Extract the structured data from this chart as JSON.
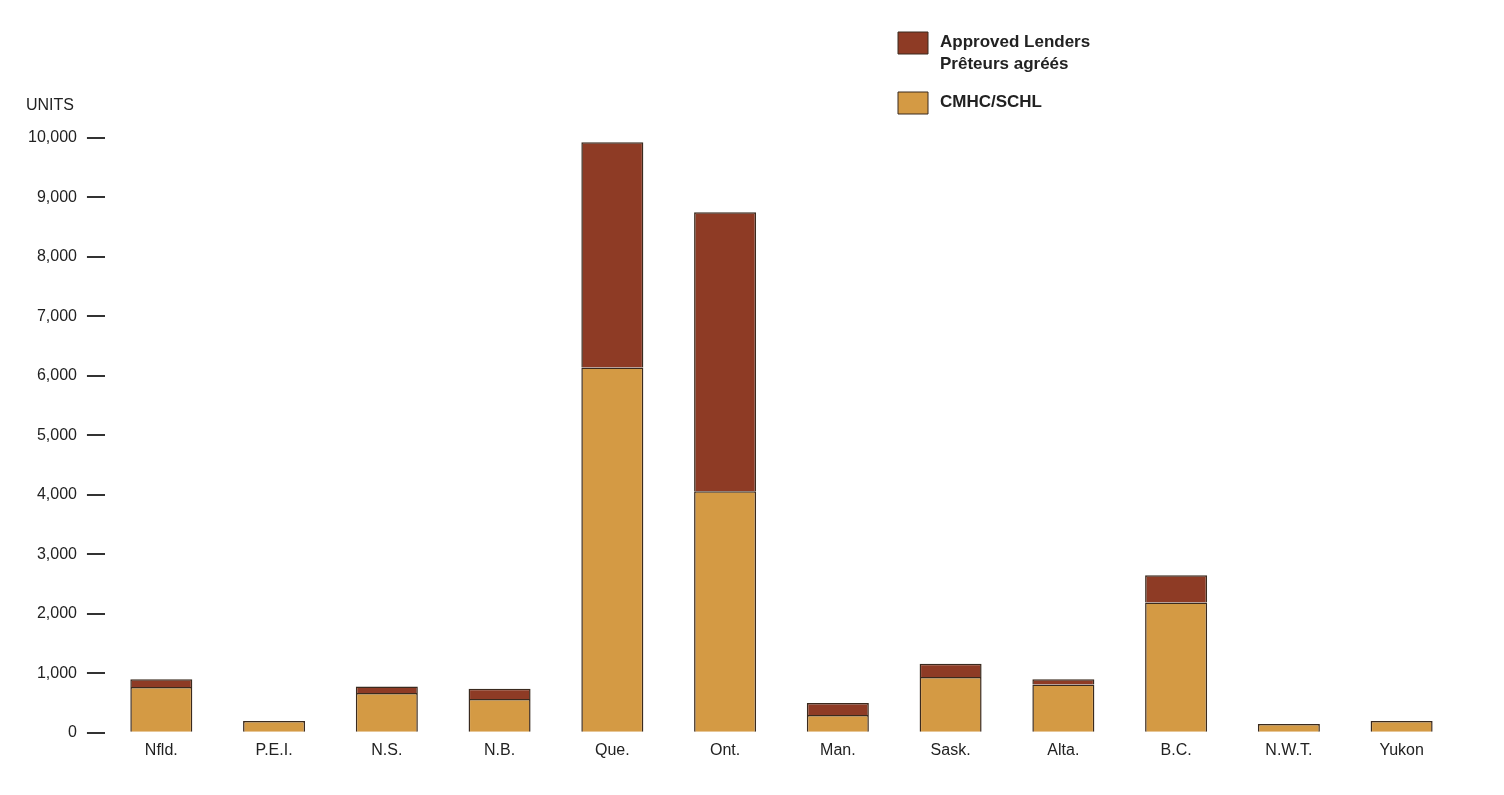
{
  "chart_data": {
    "type": "bar",
    "stacked": true,
    "ylabel": "UNITS",
    "categories": [
      "Nfld.",
      "P.E.I.",
      "N.S.",
      "N.B.",
      "Que.",
      "Ont.",
      "Man.",
      "Sask.",
      "Alta.",
      "B.C.",
      "N.W.T.",
      "Yukon"
    ],
    "series": [
      {
        "name": "CMHC/SCHL",
        "color": "#d49a44",
        "values": [
          770,
          200,
          670,
          570,
          6140,
          4060,
          300,
          940,
          810,
          2190,
          150,
          200
        ]
      },
      {
        "name": "Approved Lenders\nPrêteurs agréés",
        "color": "#8e3b25",
        "values": [
          130,
          0,
          110,
          170,
          3790,
          4690,
          200,
          220,
          90,
          460,
          0,
          0
        ]
      }
    ],
    "ylim": [
      0,
      10000
    ],
    "yticks": [
      0,
      {
        "value": 1000,
        "label": "1,000"
      },
      {
        "value": 2000,
        "label": "2,000"
      },
      {
        "value": 3000,
        "label": "3,000"
      },
      {
        "value": 4000,
        "label": "4,000"
      },
      {
        "value": 5000,
        "label": "5,000"
      },
      {
        "value": 6000,
        "label": "6,000"
      },
      {
        "value": 7000,
        "label": "7,000"
      },
      {
        "value": 8000,
        "label": "8,000"
      },
      {
        "value": 9000,
        "label": "9,000"
      },
      {
        "value": 10000,
        "label": "10,000"
      }
    ],
    "grid": false,
    "legend": "top right"
  }
}
